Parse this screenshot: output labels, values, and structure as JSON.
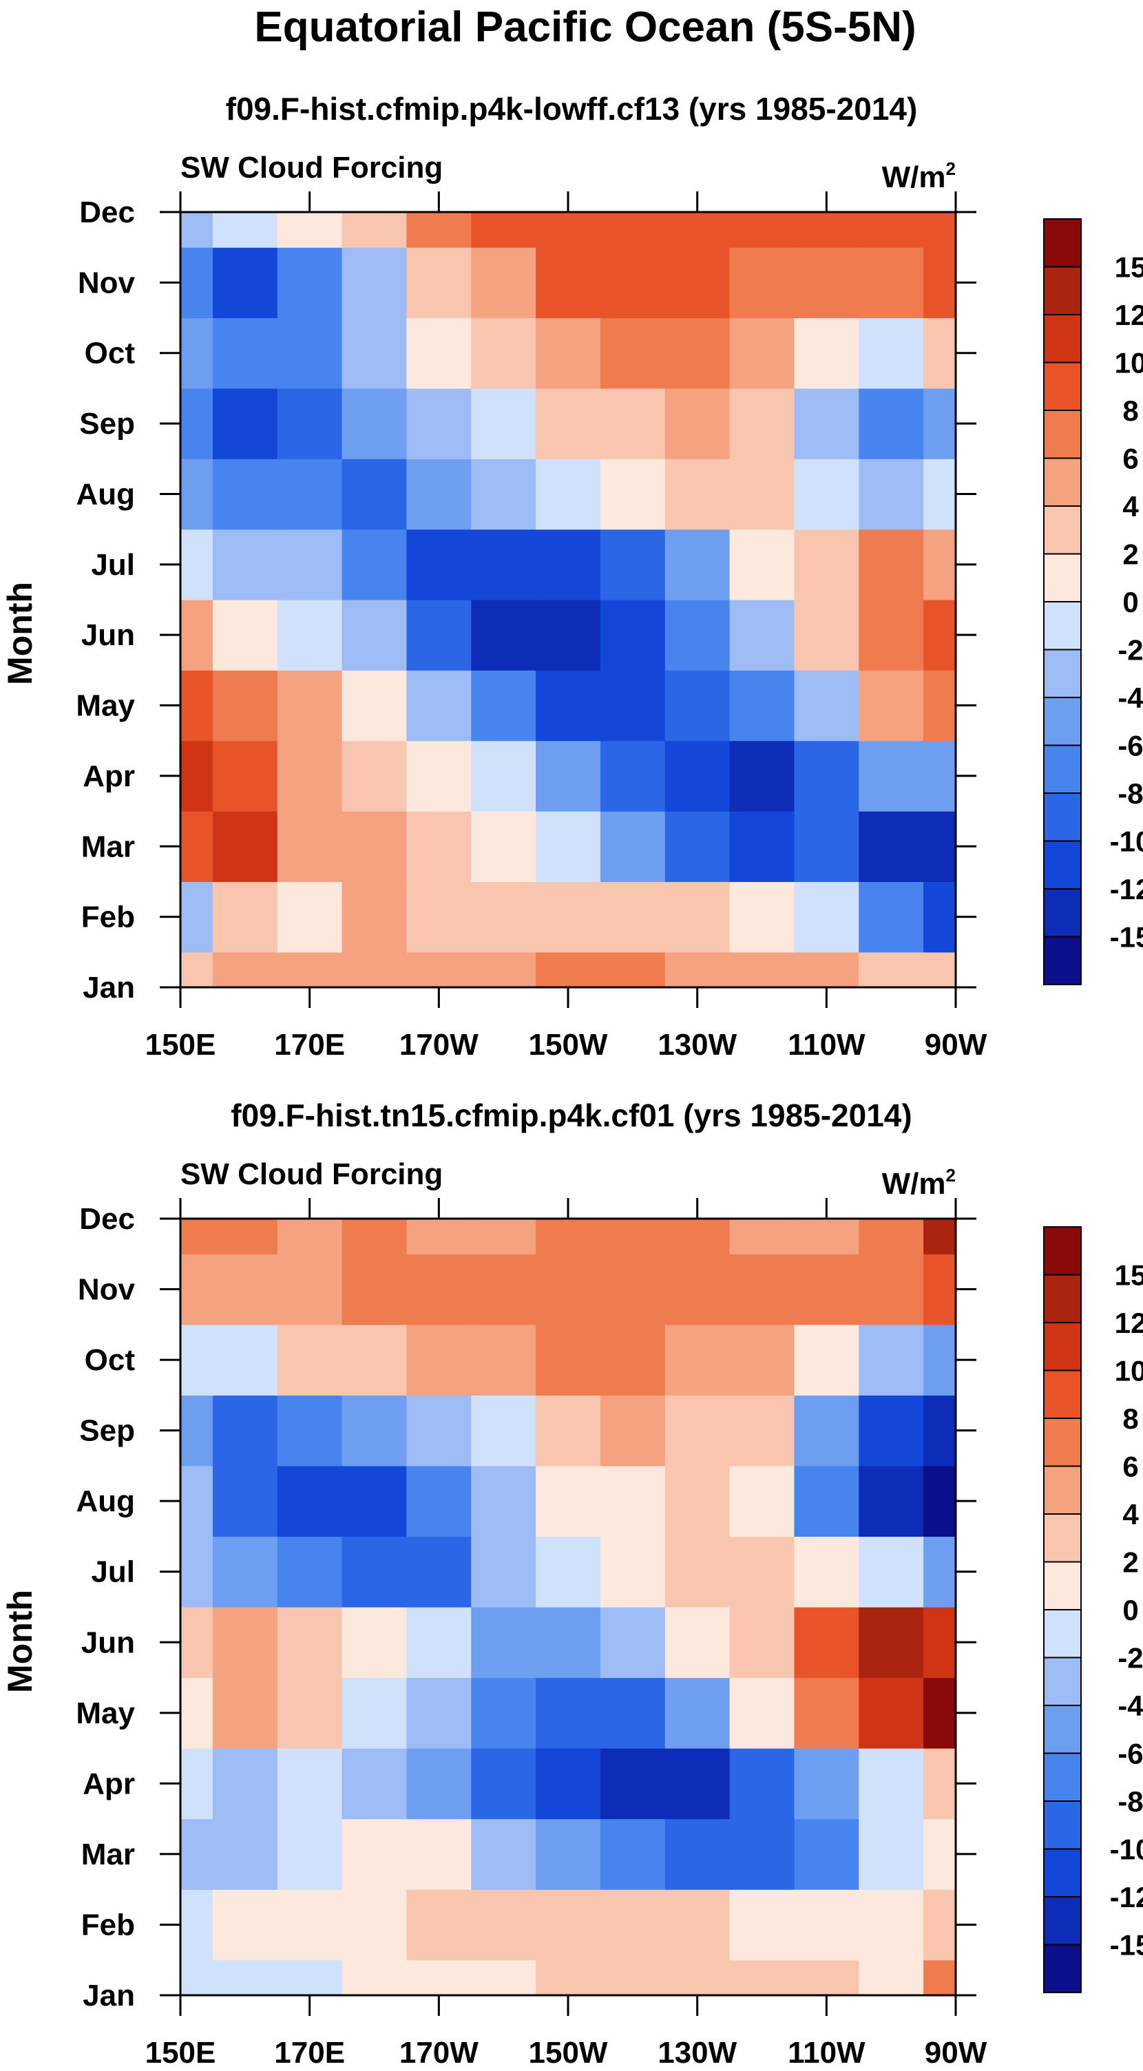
{
  "page": {
    "title": "Equatorial Pacific Ocean (5S-5N)"
  },
  "chart_data": [
    {
      "type": "heatmap",
      "title": "f09.F-hist.cfmip.p4k-lowff.cf13 (yrs 1985-2014)",
      "left_label": "SW Cloud Forcing",
      "units": "W/m",
      "units_sup": "2",
      "ylabel": "Month",
      "xlabel": "",
      "x_ticks": [
        "150E",
        "170E",
        "170W",
        "150W",
        "130W",
        "110W",
        "90W"
      ],
      "y_ticks": [
        "Jan",
        "Feb",
        "Mar",
        "Apr",
        "May",
        "Jun",
        "Jul",
        "Aug",
        "Sep",
        "Oct",
        "Nov",
        "Dec"
      ],
      "colorbar_labels": [
        "-15",
        "-12",
        "-10",
        "-8",
        "-6",
        "-4",
        "-2",
        "0",
        "2",
        "4",
        "6",
        "8",
        "10",
        "12",
        "15"
      ],
      "grid_lon": [
        150,
        160,
        170,
        180,
        190,
        200,
        210,
        220,
        230,
        240,
        250,
        260,
        270
      ],
      "grid_months": [
        "Jan",
        "Feb",
        "Mar",
        "Apr",
        "May",
        "Jun",
        "Jul",
        "Aug",
        "Sep",
        "Oct",
        "Nov",
        "Dec"
      ],
      "values": [
        [
          2,
          4,
          4,
          5,
          4,
          4,
          6,
          6,
          5,
          4,
          4,
          3,
          2
        ],
        [
          -4,
          3,
          1,
          4,
          3,
          3,
          3,
          2,
          2,
          1,
          -2,
          -8,
          -12
        ],
        [
          8,
          10,
          5,
          5,
          3,
          1,
          -2,
          -6,
          -9,
          -11,
          -10,
          -13,
          -15
        ],
        [
          10,
          9,
          5,
          3,
          1,
          -2,
          -5,
          -10,
          -12,
          -14,
          -10,
          -6,
          -6
        ],
        [
          8,
          6,
          4,
          1,
          -3,
          -8,
          -12,
          -12,
          -10,
          -8,
          -3,
          4,
          6
        ],
        [
          4,
          1,
          -1,
          -4,
          -10,
          -13,
          -14,
          -12,
          -8,
          -3,
          3,
          6,
          8
        ],
        [
          -2,
          -3,
          -4,
          -7,
          -12,
          -12,
          -12,
          -9,
          -5,
          0,
          3,
          6,
          5
        ],
        [
          -6,
          -8,
          -8,
          -9,
          -6,
          -4,
          -2,
          1,
          2,
          2,
          -2,
          -3,
          -2
        ],
        [
          -8,
          -11,
          -10,
          -6,
          -3,
          -1,
          2,
          3,
          4,
          2,
          -4,
          -8,
          -6
        ],
        [
          -5,
          -8,
          -7,
          -4,
          0,
          3,
          5,
          6,
          6,
          4,
          1,
          -1,
          2
        ],
        [
          -8,
          -12,
          -8,
          -4,
          2,
          5,
          8,
          9,
          8,
          6,
          6,
          7,
          9
        ],
        [
          -3,
          -2,
          0,
          2,
          6,
          8,
          9,
          9,
          9,
          8,
          8,
          9,
          9
        ]
      ]
    },
    {
      "type": "heatmap",
      "title": "f09.F-hist.tn15.cfmip.p4k.cf01 (yrs 1985-2014)",
      "left_label": "SW Cloud Forcing",
      "units": "W/m",
      "units_sup": "2",
      "ylabel": "Month",
      "xlabel": "",
      "x_ticks": [
        "150E",
        "170E",
        "170W",
        "150W",
        "130W",
        "110W",
        "90W"
      ],
      "y_ticks": [
        "Jan",
        "Feb",
        "Mar",
        "Apr",
        "May",
        "Jun",
        "Jul",
        "Aug",
        "Sep",
        "Oct",
        "Nov",
        "Dec"
      ],
      "colorbar_labels": [
        "-15",
        "-12",
        "-10",
        "-8",
        "-6",
        "-4",
        "-2",
        "0",
        "2",
        "4",
        "6",
        "8",
        "10",
        "12",
        "15"
      ],
      "grid_lon": [
        150,
        160,
        170,
        180,
        190,
        200,
        210,
        220,
        230,
        240,
        250,
        260,
        270
      ],
      "grid_months": [
        "Jan",
        "Feb",
        "Mar",
        "Apr",
        "May",
        "Jun",
        "Jul",
        "Aug",
        "Sep",
        "Oct",
        "Nov",
        "Dec"
      ],
      "values": [
        [
          -1,
          -1,
          -1,
          1,
          1,
          1,
          2,
          3,
          3,
          2,
          2,
          1,
          6
        ],
        [
          -2,
          1,
          1,
          1,
          2,
          3,
          2,
          2,
          2,
          1,
          1,
          1,
          2
        ],
        [
          -3,
          -4,
          -2,
          1,
          0,
          -3,
          -6,
          -8,
          -10,
          -9,
          -7,
          -2,
          0
        ],
        [
          -2,
          -3,
          -2,
          -4,
          -6,
          -10,
          -12,
          -13,
          -14,
          -10,
          -6,
          -1,
          2
        ],
        [
          1,
          4,
          2,
          -1,
          -4,
          -8,
          -10,
          -10,
          -6,
          0,
          6,
          10,
          15
        ],
        [
          2,
          5,
          3,
          0,
          -2,
          -5,
          -6,
          -3,
          0,
          2,
          8,
          12,
          10
        ],
        [
          -3,
          -6,
          -8,
          -9,
          -10,
          -4,
          -2,
          1,
          2,
          3,
          0,
          -2,
          -6
        ],
        [
          -4,
          -10,
          -11,
          -11,
          -8,
          -4,
          0,
          1,
          2,
          1,
          -8,
          -14,
          -16
        ],
        [
          -6,
          -9,
          -8,
          -6,
          -4,
          -1,
          2,
          4,
          3,
          2,
          -6,
          -12,
          -15
        ],
        [
          -2,
          -1,
          2,
          3,
          5,
          5,
          6,
          6,
          5,
          4,
          0,
          -4,
          -6
        ],
        [
          4,
          5,
          5,
          7,
          7,
          6,
          6,
          7,
          6,
          7,
          6,
          6,
          8
        ],
        [
          7,
          6,
          5,
          6,
          5,
          5,
          6,
          6,
          6,
          5,
          5,
          6,
          12
        ]
      ]
    }
  ],
  "colors": {
    "levels": [
      "#0b0f8c",
      "#0d2db8",
      "#1247d8",
      "#2a66e6",
      "#4784ee",
      "#6e9ef0",
      "#9dbcf5",
      "#cfe1fb",
      "#fde8dd",
      "#f8c6ae",
      "#f4a27f",
      "#ef7c4e",
      "#e8542a",
      "#cf3514",
      "#ab2410",
      "#8a0a0a"
    ],
    "line": "#000000"
  }
}
